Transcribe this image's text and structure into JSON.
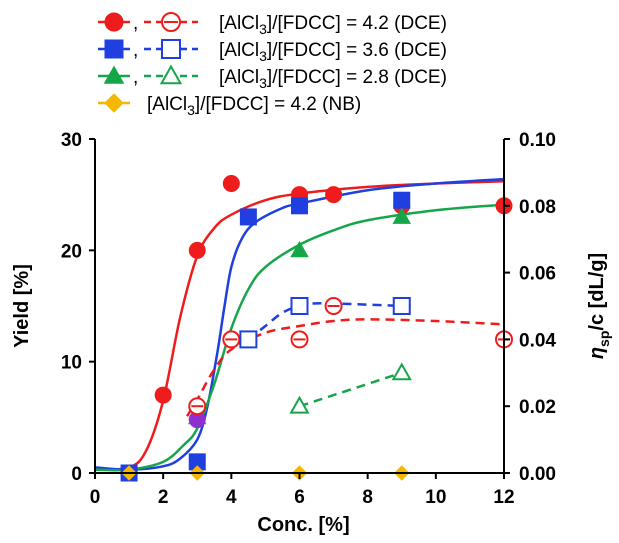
{
  "colors": {
    "red": "#ee1c1c",
    "blue": "#1f3fe0",
    "green": "#16a64a",
    "orange": "#f5b800",
    "purple": "#8f2fd0"
  },
  "chart_data": {
    "type": "scatter",
    "xlabel": "Conc.  [%]",
    "ylabel_left": "Yield [%]",
    "ylabel_right": "η sp/c [dL/g]",
    "x_ticks": [
      "0",
      "2",
      "4",
      "6",
      "8",
      "10",
      "12"
    ],
    "y_left_ticks": [
      "0",
      "10",
      "20",
      "30"
    ],
    "y_right_ticks": [
      "0.00",
      "0.02",
      "0.04",
      "0.06",
      "0.08",
      "0.10"
    ],
    "xlim": [
      0,
      12
    ],
    "ylim_left": [
      0,
      30
    ],
    "ylim_right": [
      0,
      0.1
    ],
    "grid": false,
    "legend_position": "top-left",
    "legend": [
      {
        "label": "[AlCl3]/[FDCC] = 4.2 (DCE)",
        "color": "red",
        "marker": "circle",
        "open": true
      },
      {
        "label": "[AlCl3]/[FDCC] = 3.6 (DCE)",
        "color": "blue",
        "marker": "square",
        "open": true
      },
      {
        "label": "[AlCl3]/[FDCC] = 2.8 (DCE)",
        "color": "green",
        "marker": "triangle",
        "open": true
      },
      {
        "label": "[AlCl3]/[FDCC] = 4.2 (NB)",
        "color": "orange",
        "marker": "diamond",
        "open": false
      }
    ],
    "series": [
      {
        "color": "red",
        "marker": "circle",
        "filled": true,
        "axis": "left",
        "points": [
          [
            1,
            0
          ],
          [
            2,
            7
          ],
          [
            3,
            20
          ],
          [
            4,
            26
          ],
          [
            6,
            25
          ],
          [
            7,
            25
          ],
          [
            9,
            24
          ],
          [
            12,
            24
          ]
        ]
      },
      {
        "color": "blue",
        "marker": "square",
        "filled": true,
        "axis": "left",
        "points": [
          [
            1,
            0
          ],
          [
            3,
            1
          ],
          [
            4.5,
            23
          ],
          [
            6,
            24
          ],
          [
            9,
            24.5
          ]
        ]
      },
      {
        "color": "green",
        "marker": "triangle",
        "filled": true,
        "axis": "left",
        "points": [
          [
            3,
            5
          ],
          [
            6,
            20
          ],
          [
            9,
            23
          ]
        ]
      },
      {
        "color": "orange",
        "marker": "diamond",
        "filled": true,
        "axis": "left",
        "points": [
          [
            1,
            0
          ],
          [
            3,
            0
          ],
          [
            6,
            0
          ],
          [
            9,
            0
          ]
        ]
      },
      {
        "color": "purple",
        "marker": "circle",
        "filled": true,
        "axis": "left",
        "points": [
          [
            3,
            4.8
          ]
        ]
      },
      {
        "color": "red",
        "marker": "circle",
        "filled": false,
        "axis": "right",
        "points": [
          [
            3,
            0.02
          ],
          [
            4,
            0.04
          ],
          [
            6,
            0.04
          ],
          [
            7,
            0.05
          ],
          [
            9,
            0.05
          ],
          [
            12,
            0.04
          ]
        ]
      },
      {
        "color": "blue",
        "marker": "square",
        "filled": false,
        "axis": "right",
        "points": [
          [
            4.5,
            0.04
          ],
          [
            6,
            0.05
          ],
          [
            9,
            0.05
          ]
        ]
      },
      {
        "color": "green",
        "marker": "triangle",
        "filled": false,
        "axis": "right",
        "points": [
          [
            6,
            0.02
          ],
          [
            9,
            0.03
          ]
        ]
      }
    ],
    "fit_curves": [
      {
        "color": "red",
        "style": "solid",
        "axis": "left",
        "points": [
          [
            0,
            0.3
          ],
          [
            1,
            0.5
          ],
          [
            1.5,
            2
          ],
          [
            2,
            6.5
          ],
          [
            2.5,
            14
          ],
          [
            3,
            19.5
          ],
          [
            3.5,
            22
          ],
          [
            4,
            23.2
          ],
          [
            5,
            24.5
          ],
          [
            6,
            25.1
          ],
          [
            8,
            25.7
          ],
          [
            10,
            26
          ],
          [
            12,
            26.2
          ]
        ]
      },
      {
        "color": "blue",
        "style": "solid",
        "axis": "left",
        "points": [
          [
            0,
            0.5
          ],
          [
            1,
            0.3
          ],
          [
            2,
            0.6
          ],
          [
            2.5,
            1.3
          ],
          [
            3,
            3
          ],
          [
            3.3,
            6
          ],
          [
            3.6,
            11
          ],
          [
            3.8,
            15
          ],
          [
            4,
            18.5
          ],
          [
            4.3,
            21
          ],
          [
            4.7,
            22.5
          ],
          [
            5.5,
            23.8
          ],
          [
            6,
            24.2
          ],
          [
            8,
            25.4
          ],
          [
            10,
            26
          ],
          [
            12,
            26.4
          ]
        ]
      },
      {
        "color": "green",
        "style": "solid",
        "axis": "left",
        "points": [
          [
            0,
            0.3
          ],
          [
            1,
            0.3
          ],
          [
            2,
            1
          ],
          [
            2.6,
            2.5
          ],
          [
            3,
            4
          ],
          [
            3.5,
            8
          ],
          [
            4,
            13
          ],
          [
            4.5,
            16.5
          ],
          [
            5,
            18.5
          ],
          [
            6,
            20.5
          ],
          [
            7,
            21.8
          ],
          [
            8,
            22.7
          ],
          [
            10,
            23.6
          ],
          [
            12,
            24.1
          ]
        ]
      },
      {
        "color": "red",
        "style": "dashed",
        "axis": "right",
        "points": [
          [
            2.7,
            0.017
          ],
          [
            3,
            0.022
          ],
          [
            3.5,
            0.031
          ],
          [
            4,
            0.037
          ],
          [
            5,
            0.042
          ],
          [
            6,
            0.044
          ],
          [
            7,
            0.0455
          ],
          [
            8,
            0.046
          ],
          [
            10,
            0.0455
          ],
          [
            12,
            0.0445
          ]
        ]
      },
      {
        "color": "blue",
        "style": "dashed",
        "axis": "right",
        "points": [
          [
            4.5,
            0.04
          ],
          [
            5,
            0.044
          ],
          [
            5.5,
            0.048
          ],
          [
            6,
            0.05
          ],
          [
            6.5,
            0.0508
          ],
          [
            7.5,
            0.0506
          ],
          [
            9,
            0.05
          ]
        ]
      },
      {
        "color": "green",
        "style": "dashed",
        "axis": "right",
        "points": [
          [
            6,
            0.02
          ],
          [
            9,
            0.03
          ]
        ]
      }
    ]
  }
}
